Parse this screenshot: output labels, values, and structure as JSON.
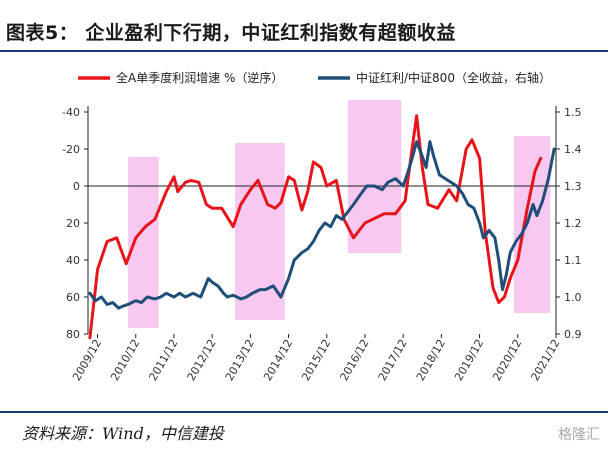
{
  "title": "图表5： 企业盈利下行期，中证红利指数有超额收益",
  "source": "资料来源：Wind，中信建投",
  "watermark": "格隆汇",
  "chart_data": {
    "type": "line",
    "x": [
      "2009/12",
      "2010/12",
      "2011/12",
      "2012/12",
      "2013/12",
      "2014/12",
      "2015/12",
      "2016/12",
      "2017/12",
      "2018/12",
      "2019/12",
      "2020/12",
      "2021/12"
    ],
    "left_axis": {
      "ticks": [
        -40,
        -20,
        0,
        20,
        40,
        60,
        80
      ],
      "range": [
        -40,
        80
      ],
      "inverted": true
    },
    "right_axis": {
      "ticks": [
        0.9,
        1.0,
        1.1,
        1.2,
        1.3,
        1.4,
        1.5
      ],
      "range": [
        0.9,
        1.5
      ]
    },
    "shaded_periods": [
      [
        2010.75,
        2011.55
      ],
      [
        2013.55,
        2014.85
      ],
      [
        2016.5,
        2017.9
      ],
      [
        2020.85,
        2021.8
      ]
    ],
    "series": [
      {
        "name": "全A单季度利润增速 %（逆序）",
        "axis": "left",
        "color": "#e8141a",
        "points": [
          [
            2009.75,
            82
          ],
          [
            2009.95,
            45
          ],
          [
            2010.2,
            30
          ],
          [
            2010.45,
            28
          ],
          [
            2010.7,
            42
          ],
          [
            2010.95,
            28
          ],
          [
            2011.2,
            22
          ],
          [
            2011.45,
            18
          ],
          [
            2011.75,
            3
          ],
          [
            2011.95,
            -5
          ],
          [
            2012.05,
            3
          ],
          [
            2012.25,
            -2
          ],
          [
            2012.4,
            -3
          ],
          [
            2012.6,
            -2
          ],
          [
            2012.8,
            10
          ],
          [
            2012.95,
            12
          ],
          [
            2013.2,
            12
          ],
          [
            2013.5,
            22
          ],
          [
            2013.7,
            10
          ],
          [
            2013.95,
            2
          ],
          [
            2014.15,
            -3
          ],
          [
            2014.4,
            10
          ],
          [
            2014.6,
            12
          ],
          [
            2014.75,
            9
          ],
          [
            2014.95,
            -5
          ],
          [
            2015.1,
            -3
          ],
          [
            2015.3,
            13
          ],
          [
            2015.45,
            3
          ],
          [
            2015.6,
            -13
          ],
          [
            2015.8,
            -10
          ],
          [
            2015.95,
            0
          ],
          [
            2016.2,
            -3
          ],
          [
            2016.4,
            18
          ],
          [
            2016.65,
            28
          ],
          [
            2016.95,
            20
          ],
          [
            2017.15,
            18
          ],
          [
            2017.45,
            15
          ],
          [
            2017.75,
            15
          ],
          [
            2018.0,
            8
          ],
          [
            2018.15,
            -15
          ],
          [
            2018.3,
            -38
          ],
          [
            2018.45,
            -10
          ],
          [
            2018.6,
            10
          ],
          [
            2018.85,
            12
          ],
          [
            2019.15,
            2
          ],
          [
            2019.35,
            8
          ],
          [
            2019.6,
            -20
          ],
          [
            2019.75,
            -25
          ],
          [
            2019.95,
            -15
          ],
          [
            2020.1,
            25
          ],
          [
            2020.3,
            55
          ],
          [
            2020.45,
            63
          ],
          [
            2020.6,
            60
          ],
          [
            2020.75,
            50
          ],
          [
            2020.95,
            40
          ],
          [
            2021.2,
            12
          ],
          [
            2021.4,
            -8
          ],
          [
            2021.55,
            -15
          ]
        ]
      },
      {
        "name": "中证红利/中证800（全收益，右轴）",
        "axis": "right",
        "color": "#1f4e79",
        "points": [
          [
            2009.75,
            1.01
          ],
          [
            2009.9,
            0.99
          ],
          [
            2010.05,
            1.0
          ],
          [
            2010.2,
            0.98
          ],
          [
            2010.35,
            0.985
          ],
          [
            2010.5,
            0.97
          ],
          [
            2010.6,
            0.975
          ],
          [
            2010.75,
            0.98
          ],
          [
            2010.95,
            0.99
          ],
          [
            2011.1,
            0.985
          ],
          [
            2011.25,
            1.0
          ],
          [
            2011.45,
            0.995
          ],
          [
            2011.6,
            1.0
          ],
          [
            2011.75,
            1.01
          ],
          [
            2011.95,
            1.0
          ],
          [
            2012.1,
            1.01
          ],
          [
            2012.25,
            1.0
          ],
          [
            2012.45,
            1.01
          ],
          [
            2012.65,
            1.0
          ],
          [
            2012.85,
            1.05
          ],
          [
            2012.95,
            1.04
          ],
          [
            2013.1,
            1.03
          ],
          [
            2013.25,
            1.01
          ],
          [
            2013.35,
            1.0
          ],
          [
            2013.5,
            1.005
          ],
          [
            2013.7,
            0.995
          ],
          [
            2013.85,
            1.0
          ],
          [
            2014.0,
            1.01
          ],
          [
            2014.2,
            1.02
          ],
          [
            2014.35,
            1.02
          ],
          [
            2014.55,
            1.03
          ],
          [
            2014.75,
            1.0
          ],
          [
            2014.95,
            1.05
          ],
          [
            2015.1,
            1.1
          ],
          [
            2015.3,
            1.12
          ],
          [
            2015.45,
            1.13
          ],
          [
            2015.6,
            1.15
          ],
          [
            2015.75,
            1.18
          ],
          [
            2015.9,
            1.2
          ],
          [
            2016.05,
            1.19
          ],
          [
            2016.2,
            1.22
          ],
          [
            2016.35,
            1.21
          ],
          [
            2016.5,
            1.23
          ],
          [
            2016.65,
            1.25
          ],
          [
            2016.85,
            1.28
          ],
          [
            2017.0,
            1.3
          ],
          [
            2017.2,
            1.3
          ],
          [
            2017.4,
            1.29
          ],
          [
            2017.55,
            1.31
          ],
          [
            2017.75,
            1.32
          ],
          [
            2017.95,
            1.3
          ],
          [
            2018.05,
            1.33
          ],
          [
            2018.2,
            1.38
          ],
          [
            2018.3,
            1.42
          ],
          [
            2018.45,
            1.38
          ],
          [
            2018.55,
            1.35
          ],
          [
            2018.65,
            1.42
          ],
          [
            2018.75,
            1.38
          ],
          [
            2018.9,
            1.33
          ],
          [
            2019.05,
            1.32
          ],
          [
            2019.2,
            1.31
          ],
          [
            2019.35,
            1.3
          ],
          [
            2019.5,
            1.28
          ],
          [
            2019.65,
            1.25
          ],
          [
            2019.8,
            1.24
          ],
          [
            2019.95,
            1.2
          ],
          [
            2020.05,
            1.16
          ],
          [
            2020.2,
            1.18
          ],
          [
            2020.35,
            1.16
          ],
          [
            2020.45,
            1.1
          ],
          [
            2020.55,
            1.02
          ],
          [
            2020.65,
            1.06
          ],
          [
            2020.75,
            1.12
          ],
          [
            2020.9,
            1.15
          ],
          [
            2021.05,
            1.17
          ],
          [
            2021.2,
            1.2
          ],
          [
            2021.35,
            1.25
          ],
          [
            2021.45,
            1.22
          ],
          [
            2021.6,
            1.26
          ],
          [
            2021.75,
            1.32
          ],
          [
            2021.9,
            1.4
          ]
        ]
      }
    ],
    "legend_position": "top"
  }
}
